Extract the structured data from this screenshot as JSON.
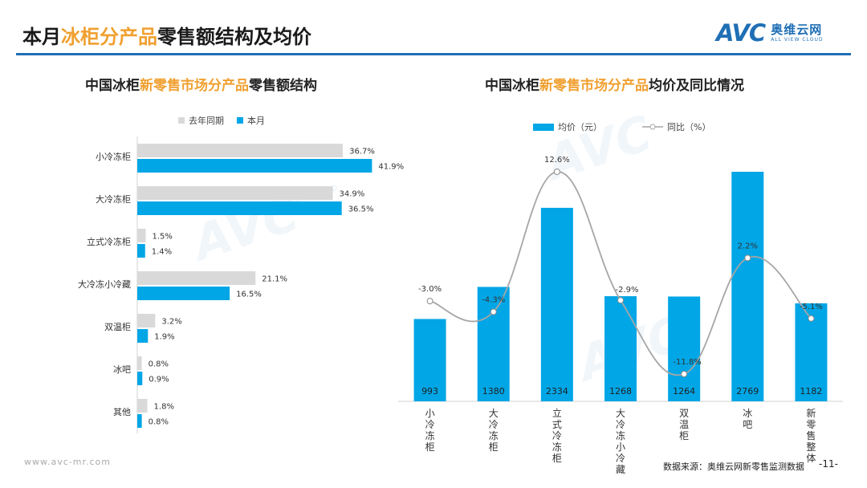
{
  "header": {
    "title_pre": "本月",
    "title_accent": "冰柜分产品",
    "title_post": "零售额结构及均价",
    "logo_mark": "AVC",
    "logo_cn": "奥维云网",
    "logo_en": "ALL VIEW CLOUD"
  },
  "watermark": {
    "mark": "AVC",
    "cn": "奥维云网",
    "en": "ALL VIEW CLOUD"
  },
  "left_title": {
    "pre": "中国冰柜",
    "accent": "新零售市场分产品",
    "post": "零售额结构"
  },
  "right_title": {
    "pre": "中国冰柜",
    "accent": "新零售市场分产品",
    "post": "均价及同比情况"
  },
  "footer": {
    "url": "www.avc-mr.com",
    "source": "数据来源：奥维云网新零售监测数据",
    "page": "-11-"
  },
  "colors": {
    "blue": "#00a6e6",
    "gray": "#d9d9d9",
    "line": "#a6a6a6",
    "accent": "#f0a030",
    "brand": "#1f6fb5"
  },
  "chart_data": [
    {
      "type": "bar",
      "orientation": "horizontal",
      "categories": [
        "小冷冻柜",
        "大冷冻柜",
        "立式冷冻柜",
        "大冷冻小冷藏",
        "双温柜",
        "冰吧",
        "其他"
      ],
      "series": [
        {
          "name": "去年同期",
          "values": [
            36.7,
            34.9,
            1.5,
            21.1,
            3.2,
            0.8,
            1.8
          ],
          "labels": [
            "36.7%",
            "34.9%",
            "1.5%",
            "21.1%",
            "3.2%",
            "0.8%",
            "1.8%"
          ],
          "color": "#d9d9d9"
        },
        {
          "name": "本月",
          "values": [
            41.9,
            36.5,
            1.4,
            16.5,
            1.9,
            0.9,
            0.8
          ],
          "labels": [
            "41.9%",
            "36.5%",
            "1.4%",
            "16.5%",
            "1.9%",
            "0.9%",
            "0.8%"
          ],
          "color": "#00a6e6"
        }
      ],
      "xlim": [
        0,
        45
      ],
      "legend": "top",
      "grid": false
    },
    {
      "type": "bar",
      "categories": [
        "小冷冻柜",
        "大冷冻柜",
        "立式冷冻柜",
        "大冷冻小冷藏",
        "双温柜",
        "冰吧",
        "新零售整体"
      ],
      "series": [
        {
          "name": "均价（元）",
          "type": "bar",
          "values": [
            993,
            1380,
            2334,
            1268,
            1264,
            2769,
            1182
          ],
          "labels": [
            "993",
            "1380",
            "2334",
            "1268",
            "1264",
            "2769",
            "1182"
          ],
          "color": "#00a6e6"
        },
        {
          "name": "同比（%）",
          "type": "line",
          "smooth": true,
          "values": [
            -3.0,
            -4.3,
            12.6,
            -2.9,
            -11.8,
            2.2,
            -5.1
          ],
          "labels": [
            "-3.0%",
            "-4.3%",
            "12.6%",
            "-2.9%",
            "-11.8%",
            "2.2%",
            "-5.1%"
          ],
          "color": "#a6a6a6"
        }
      ],
      "ylim": [
        0,
        3000
      ],
      "y2lim": [
        -14,
        15
      ],
      "legend": "top",
      "grid": false
    }
  ]
}
